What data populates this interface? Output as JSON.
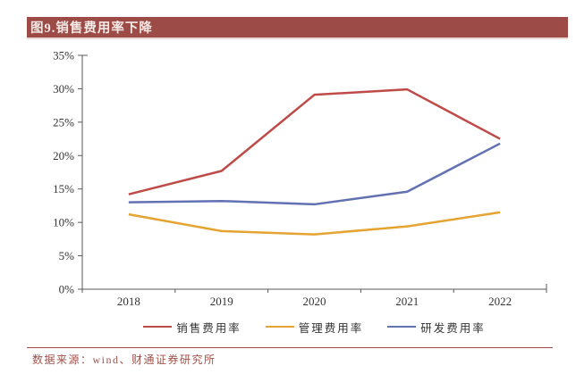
{
  "header": {
    "title": "图9.销售费用率下降"
  },
  "footer": {
    "source_label": "数据来源：wind、财通证券研究所"
  },
  "colors": {
    "header_bg": "#9C4B47",
    "header_text": "#F4E9E4",
    "footer_text": "#A14F48",
    "footer_line": "#9C4B47",
    "axis": "#595959",
    "tick_label": "#333333"
  },
  "chart_data": {
    "type": "line",
    "title": "图9.销售费用率下降",
    "categories": [
      "2018",
      "2019",
      "2020",
      "2021",
      "2022"
    ],
    "series": [
      {
        "name": "销售费用率",
        "color": "#BE4B48",
        "values": [
          14.2,
          17.7,
          29.1,
          29.9,
          22.5
        ]
      },
      {
        "name": "管理费用率",
        "color": "#E5A432",
        "values": [
          11.2,
          8.7,
          8.2,
          9.4,
          11.5
        ]
      },
      {
        "name": "研发费用率",
        "color": "#6271B2",
        "values": [
          13.0,
          13.2,
          12.7,
          14.6,
          21.8
        ]
      }
    ],
    "xlabel": "",
    "ylabel": "",
    "ylim": [
      0,
      35
    ],
    "ytick_step": 5,
    "ytick_labels": [
      "0%",
      "5%",
      "10%",
      "15%",
      "20%",
      "25%",
      "30%",
      "35%"
    ],
    "grid": false,
    "legend_position": "bottom"
  }
}
